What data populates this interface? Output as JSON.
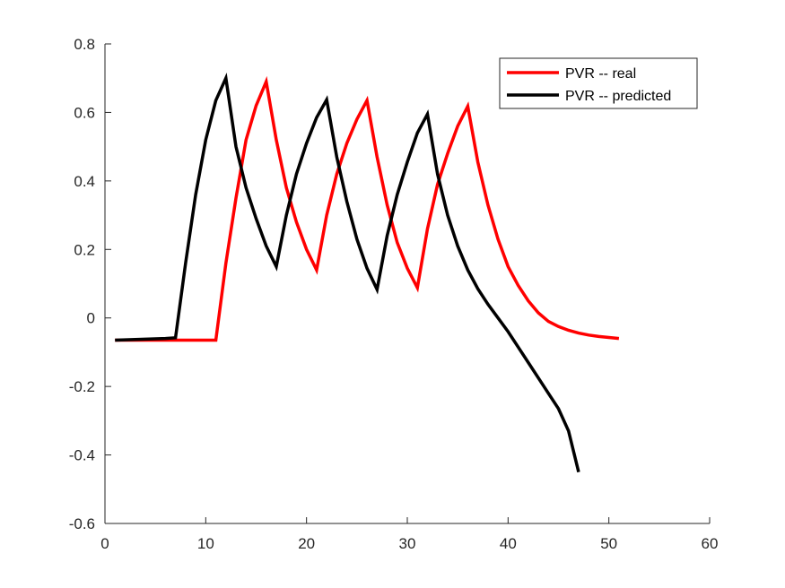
{
  "chart_data": {
    "type": "line",
    "title": "",
    "xlabel": "",
    "ylabel": "",
    "xlim": [
      0,
      60
    ],
    "ylim": [
      -0.6,
      0.8
    ],
    "xticks": [
      0,
      10,
      20,
      30,
      40,
      50,
      60
    ],
    "yticks": [
      -0.6,
      -0.4,
      -0.2,
      0,
      0.2,
      0.4,
      0.6,
      0.8
    ],
    "xtick_labels": [
      "0",
      "10",
      "20",
      "30",
      "40",
      "50",
      "60"
    ],
    "ytick_labels": [
      "-0.6",
      "-0.4",
      "-0.2",
      "0",
      "0.2",
      "0.4",
      "0.6",
      "0.8"
    ],
    "grid": false,
    "legend_position": "top-right",
    "series": [
      {
        "name": "PVR -- real",
        "color": "#ff0000",
        "x": [
          1,
          2,
          3,
          4,
          5,
          6,
          7,
          8,
          9,
          10,
          11,
          12,
          13,
          14,
          15,
          16,
          17,
          18,
          19,
          20,
          21,
          22,
          23,
          24,
          25,
          26,
          27,
          28,
          29,
          30,
          31,
          32,
          33,
          34,
          35,
          36,
          37,
          38,
          39,
          40,
          41,
          42,
          43,
          44,
          45,
          46,
          47,
          48,
          49,
          50,
          51
        ],
        "y": [
          -0.065,
          -0.065,
          -0.065,
          -0.065,
          -0.065,
          -0.065,
          -0.065,
          -0.065,
          -0.065,
          -0.065,
          -0.065,
          0.16,
          0.35,
          0.52,
          0.62,
          0.69,
          0.52,
          0.38,
          0.28,
          0.2,
          0.14,
          0.3,
          0.42,
          0.51,
          0.58,
          0.635,
          0.47,
          0.33,
          0.22,
          0.145,
          0.088,
          0.26,
          0.39,
          0.48,
          0.56,
          0.618,
          0.455,
          0.33,
          0.23,
          0.15,
          0.095,
          0.05,
          0.015,
          -0.01,
          -0.025,
          -0.036,
          -0.044,
          -0.05,
          -0.054,
          -0.057,
          -0.06
        ]
      },
      {
        "name": "PVR -- predicted",
        "color": "#000000",
        "x": [
          1,
          2,
          3,
          4,
          5,
          6,
          7,
          8,
          9,
          10,
          11,
          12,
          13,
          14,
          15,
          16,
          17,
          18,
          19,
          20,
          21,
          22,
          23,
          24,
          25,
          26,
          27,
          28,
          29,
          30,
          31,
          32,
          33,
          34,
          35,
          36,
          37,
          38,
          39,
          40,
          41,
          42,
          43,
          44,
          45,
          46,
          47
        ],
        "y": [
          -0.065,
          -0.064,
          -0.063,
          -0.062,
          -0.061,
          -0.06,
          -0.058,
          0.16,
          0.36,
          0.52,
          0.635,
          0.7,
          0.5,
          0.38,
          0.29,
          0.21,
          0.15,
          0.3,
          0.42,
          0.51,
          0.585,
          0.637,
          0.47,
          0.34,
          0.23,
          0.145,
          0.083,
          0.24,
          0.36,
          0.455,
          0.54,
          0.595,
          0.42,
          0.3,
          0.21,
          0.14,
          0.085,
          0.04,
          0.0,
          -0.04,
          -0.085,
          -0.13,
          -0.175,
          -0.22,
          -0.265,
          -0.33,
          -0.45
        ]
      }
    ]
  }
}
